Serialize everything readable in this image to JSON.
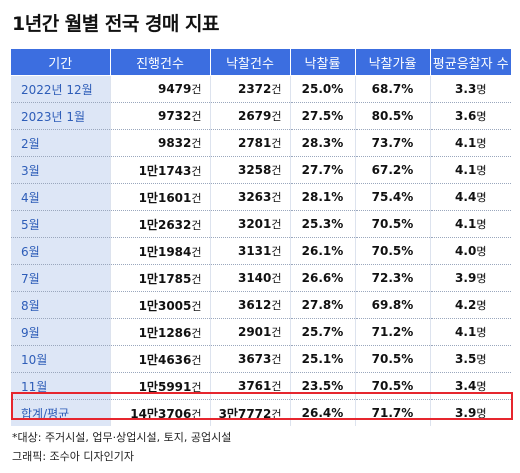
{
  "title": "1년간 월별 전국 경매 지표",
  "columns": [
    "기간",
    "진행건수",
    "낙찰건수",
    "낙찰률",
    "낙찰가율",
    "평균응찰자 수"
  ],
  "rows": [
    {
      "period": "2022년 12월",
      "progress": "9479",
      "sold": "2372",
      "rate": "25.0%",
      "price_rate": "68.7%",
      "bidders": "3.3"
    },
    {
      "period": "2023년 1월",
      "progress": "9732",
      "sold": "2679",
      "rate": "27.5%",
      "price_rate": "80.5%",
      "bidders": "3.6"
    },
    {
      "period": "2월",
      "progress": "9832",
      "sold": "2781",
      "rate": "28.3%",
      "price_rate": "73.7%",
      "bidders": "4.1"
    },
    {
      "period": "3월",
      "progress": "1만1743",
      "sold": "3258",
      "rate": "27.7%",
      "price_rate": "67.2%",
      "bidders": "4.1"
    },
    {
      "period": "4월",
      "progress": "1만1601",
      "sold": "3263",
      "rate": "28.1%",
      "price_rate": "75.4%",
      "bidders": "4.4"
    },
    {
      "period": "5월",
      "progress": "1만2632",
      "sold": "3201",
      "rate": "25.3%",
      "price_rate": "70.5%",
      "bidders": "4.1"
    },
    {
      "period": "6월",
      "progress": "1만1984",
      "sold": "3131",
      "rate": "26.1%",
      "price_rate": "70.5%",
      "bidders": "4.0"
    },
    {
      "period": "7월",
      "progress": "1만1785",
      "sold": "3140",
      "rate": "26.6%",
      "price_rate": "72.3%",
      "bidders": "3.9"
    },
    {
      "period": "8월",
      "progress": "1만3005",
      "sold": "3612",
      "rate": "27.8%",
      "price_rate": "69.8%",
      "bidders": "4.2"
    },
    {
      "period": "9월",
      "progress": "1만1286",
      "sold": "2901",
      "rate": "25.7%",
      "price_rate": "71.2%",
      "bidders": "4.1"
    },
    {
      "period": "10월",
      "progress": "1만4636",
      "sold": "3673",
      "rate": "25.1%",
      "price_rate": "70.5%",
      "bidders": "3.5"
    },
    {
      "period": "11월",
      "progress": "1만5991",
      "sold": "3761",
      "rate": "23.5%",
      "price_rate": "70.5%",
      "bidders": "3.4"
    }
  ],
  "total": {
    "period": "합계/평균",
    "progress": "14만3706",
    "sold": "3만7772",
    "rate": "26.4%",
    "price_rate": "71.7%",
    "bidders": "3.9"
  },
  "units": {
    "count": "건",
    "people": "명"
  },
  "footer": {
    "note": "*대상: 주거시설, 업무·상업시설, 토지, 공업시설",
    "credit": "그래픽: 조수아 디자인기자"
  },
  "colors": {
    "header_bg": "#3c6ee0",
    "period_bg": "#dde6f6",
    "period_text": "#2e5db8",
    "total_border": "#e6262e"
  }
}
